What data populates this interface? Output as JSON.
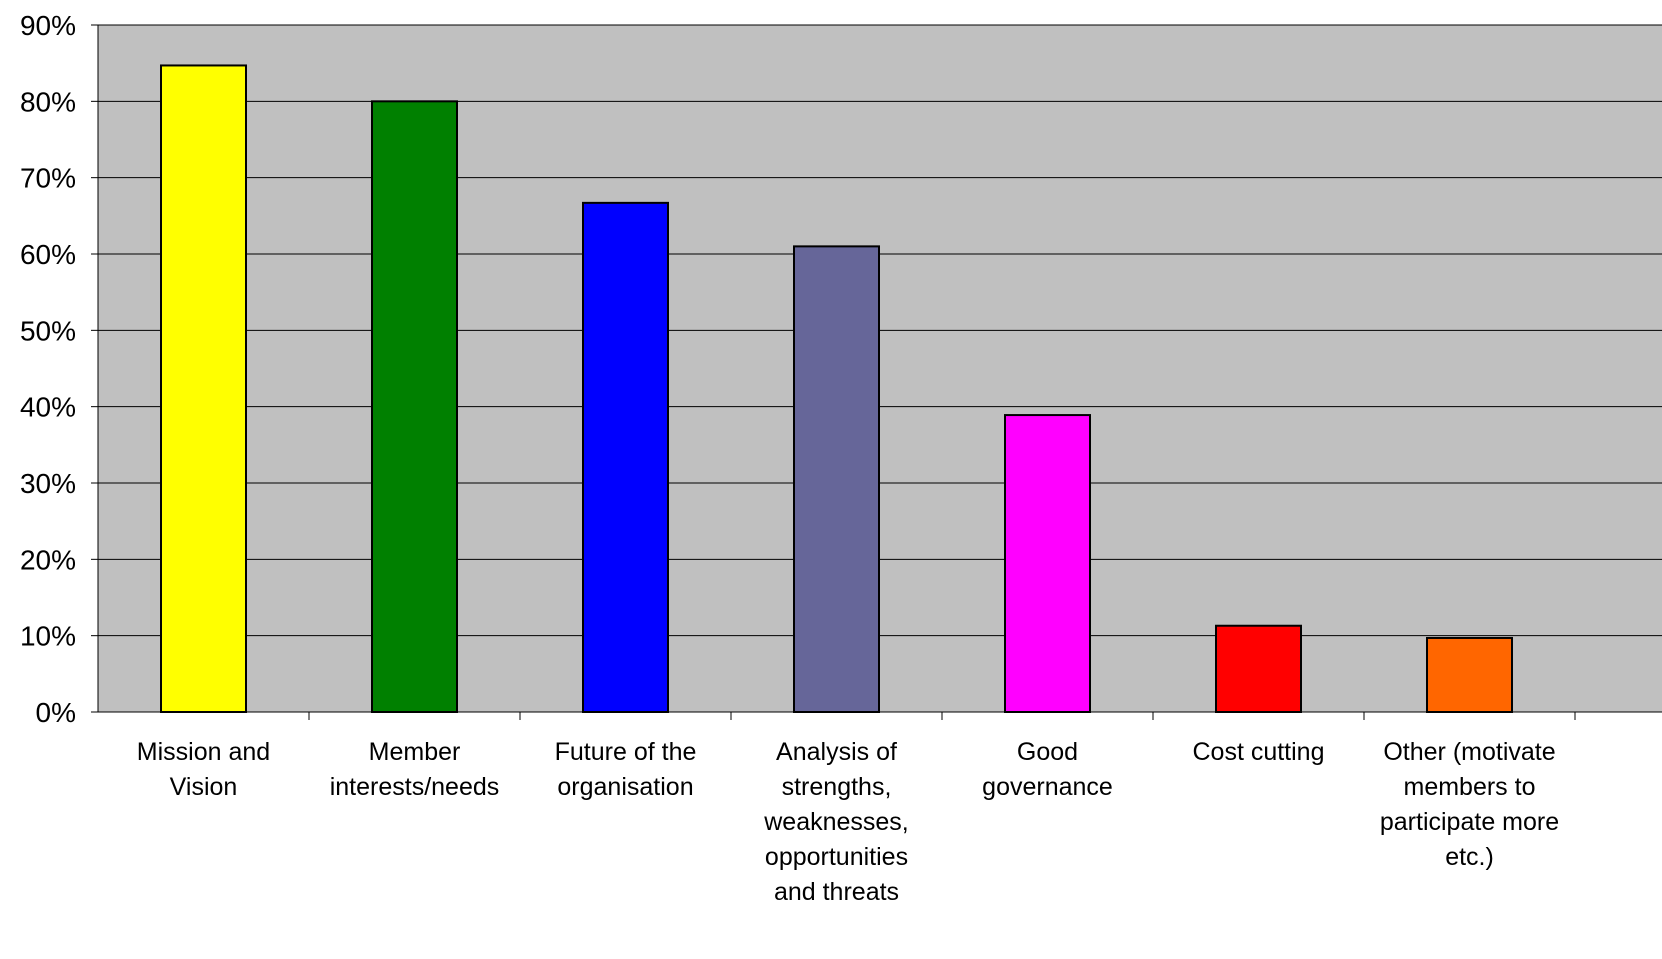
{
  "chart_data": {
    "type": "bar",
    "title": "",
    "xlabel": "",
    "ylabel": "",
    "ylim": [
      0,
      90
    ],
    "yticks": [
      0,
      10,
      20,
      30,
      40,
      50,
      60,
      70,
      80,
      90
    ],
    "ytick_labels": [
      "0%",
      "10%",
      "20%",
      "30%",
      "40%",
      "50%",
      "60%",
      "70%",
      "80%",
      "90%"
    ],
    "grid": true,
    "plot_background": "#C0C0C0",
    "categories": [
      [
        "Mission and",
        "Vision"
      ],
      [
        "Member",
        "interests/needs"
      ],
      [
        "Future of the",
        "organisation"
      ],
      [
        "Analysis of",
        "strengths,",
        "weaknesses,",
        "opportunities",
        "and threats"
      ],
      [
        "Good",
        "governance"
      ],
      [
        "Cost cutting"
      ],
      [
        "Other (motivate",
        "members to",
        "participate more",
        "etc.)"
      ]
    ],
    "values": [
      84.7,
      80.0,
      66.7,
      61.0,
      38.9,
      11.3,
      9.7
    ],
    "colors": [
      "#FFFF00",
      "#008000",
      "#0000FF",
      "#666699",
      "#FF00FF",
      "#FF0000",
      "#FF6600"
    ]
  }
}
